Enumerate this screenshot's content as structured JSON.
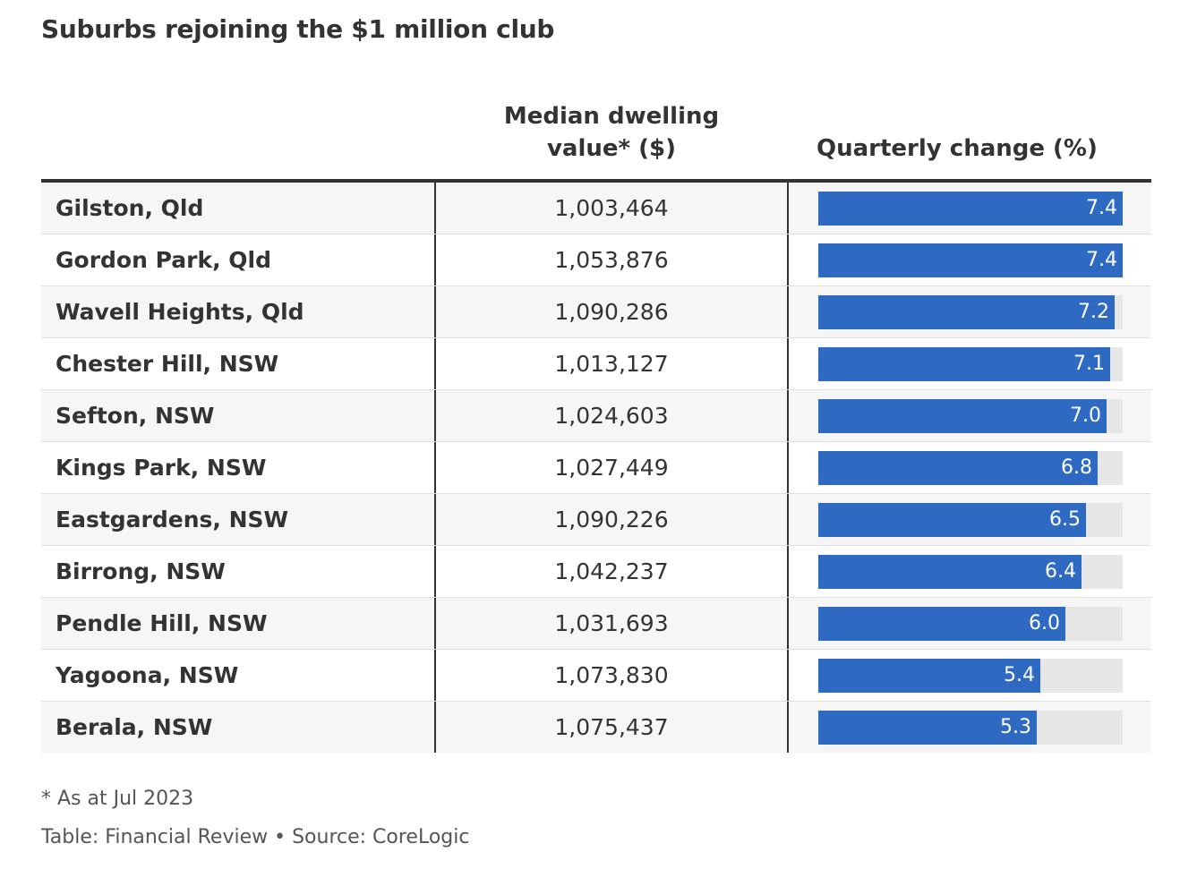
{
  "title": "Suburbs rejoining the $1 million club",
  "columns": {
    "value_line1": "Median dwelling",
    "value_line2": "value* ($)",
    "change": "Quarterly change (%)"
  },
  "footnote": "* As at Jul 2023",
  "source": "Table: Financial Review • Source: CoreLogic",
  "colors": {
    "bar": "#2e69c2",
    "bar_track": "#e7e7e7",
    "text": "#333333"
  },
  "chart_data": {
    "type": "table",
    "title": "Suburbs rejoining the $1 million club",
    "columns": [
      "",
      "Median dwelling value* ($)",
      "Quarterly change (%)"
    ],
    "bar_max": 7.4,
    "rows": [
      {
        "suburb": "Gilston, Qld",
        "value": "1,003,464",
        "change": 7.4,
        "change_label": "7.4"
      },
      {
        "suburb": "Gordon Park, Qld",
        "value": "1,053,876",
        "change": 7.4,
        "change_label": "7.4"
      },
      {
        "suburb": "Wavell Heights, Qld",
        "value": "1,090,286",
        "change": 7.2,
        "change_label": "7.2"
      },
      {
        "suburb": "Chester Hill, NSW",
        "value": "1,013,127",
        "change": 7.1,
        "change_label": "7.1"
      },
      {
        "suburb": "Sefton, NSW",
        "value": "1,024,603",
        "change": 7.0,
        "change_label": "7.0"
      },
      {
        "suburb": "Kings Park, NSW",
        "value": "1,027,449",
        "change": 6.8,
        "change_label": "6.8"
      },
      {
        "suburb": "Eastgardens, NSW",
        "value": "1,090,226",
        "change": 6.5,
        "change_label": "6.5"
      },
      {
        "suburb": "Birrong, NSW",
        "value": "1,042,237",
        "change": 6.4,
        "change_label": "6.4"
      },
      {
        "suburb": "Pendle Hill, NSW",
        "value": "1,031,693",
        "change": 6.0,
        "change_label": "6.0"
      },
      {
        "suburb": "Yagoona, NSW",
        "value": "1,073,830",
        "change": 5.4,
        "change_label": "5.4"
      },
      {
        "suburb": "Berala, NSW",
        "value": "1,075,437",
        "change": 5.3,
        "change_label": "5.3"
      }
    ]
  }
}
